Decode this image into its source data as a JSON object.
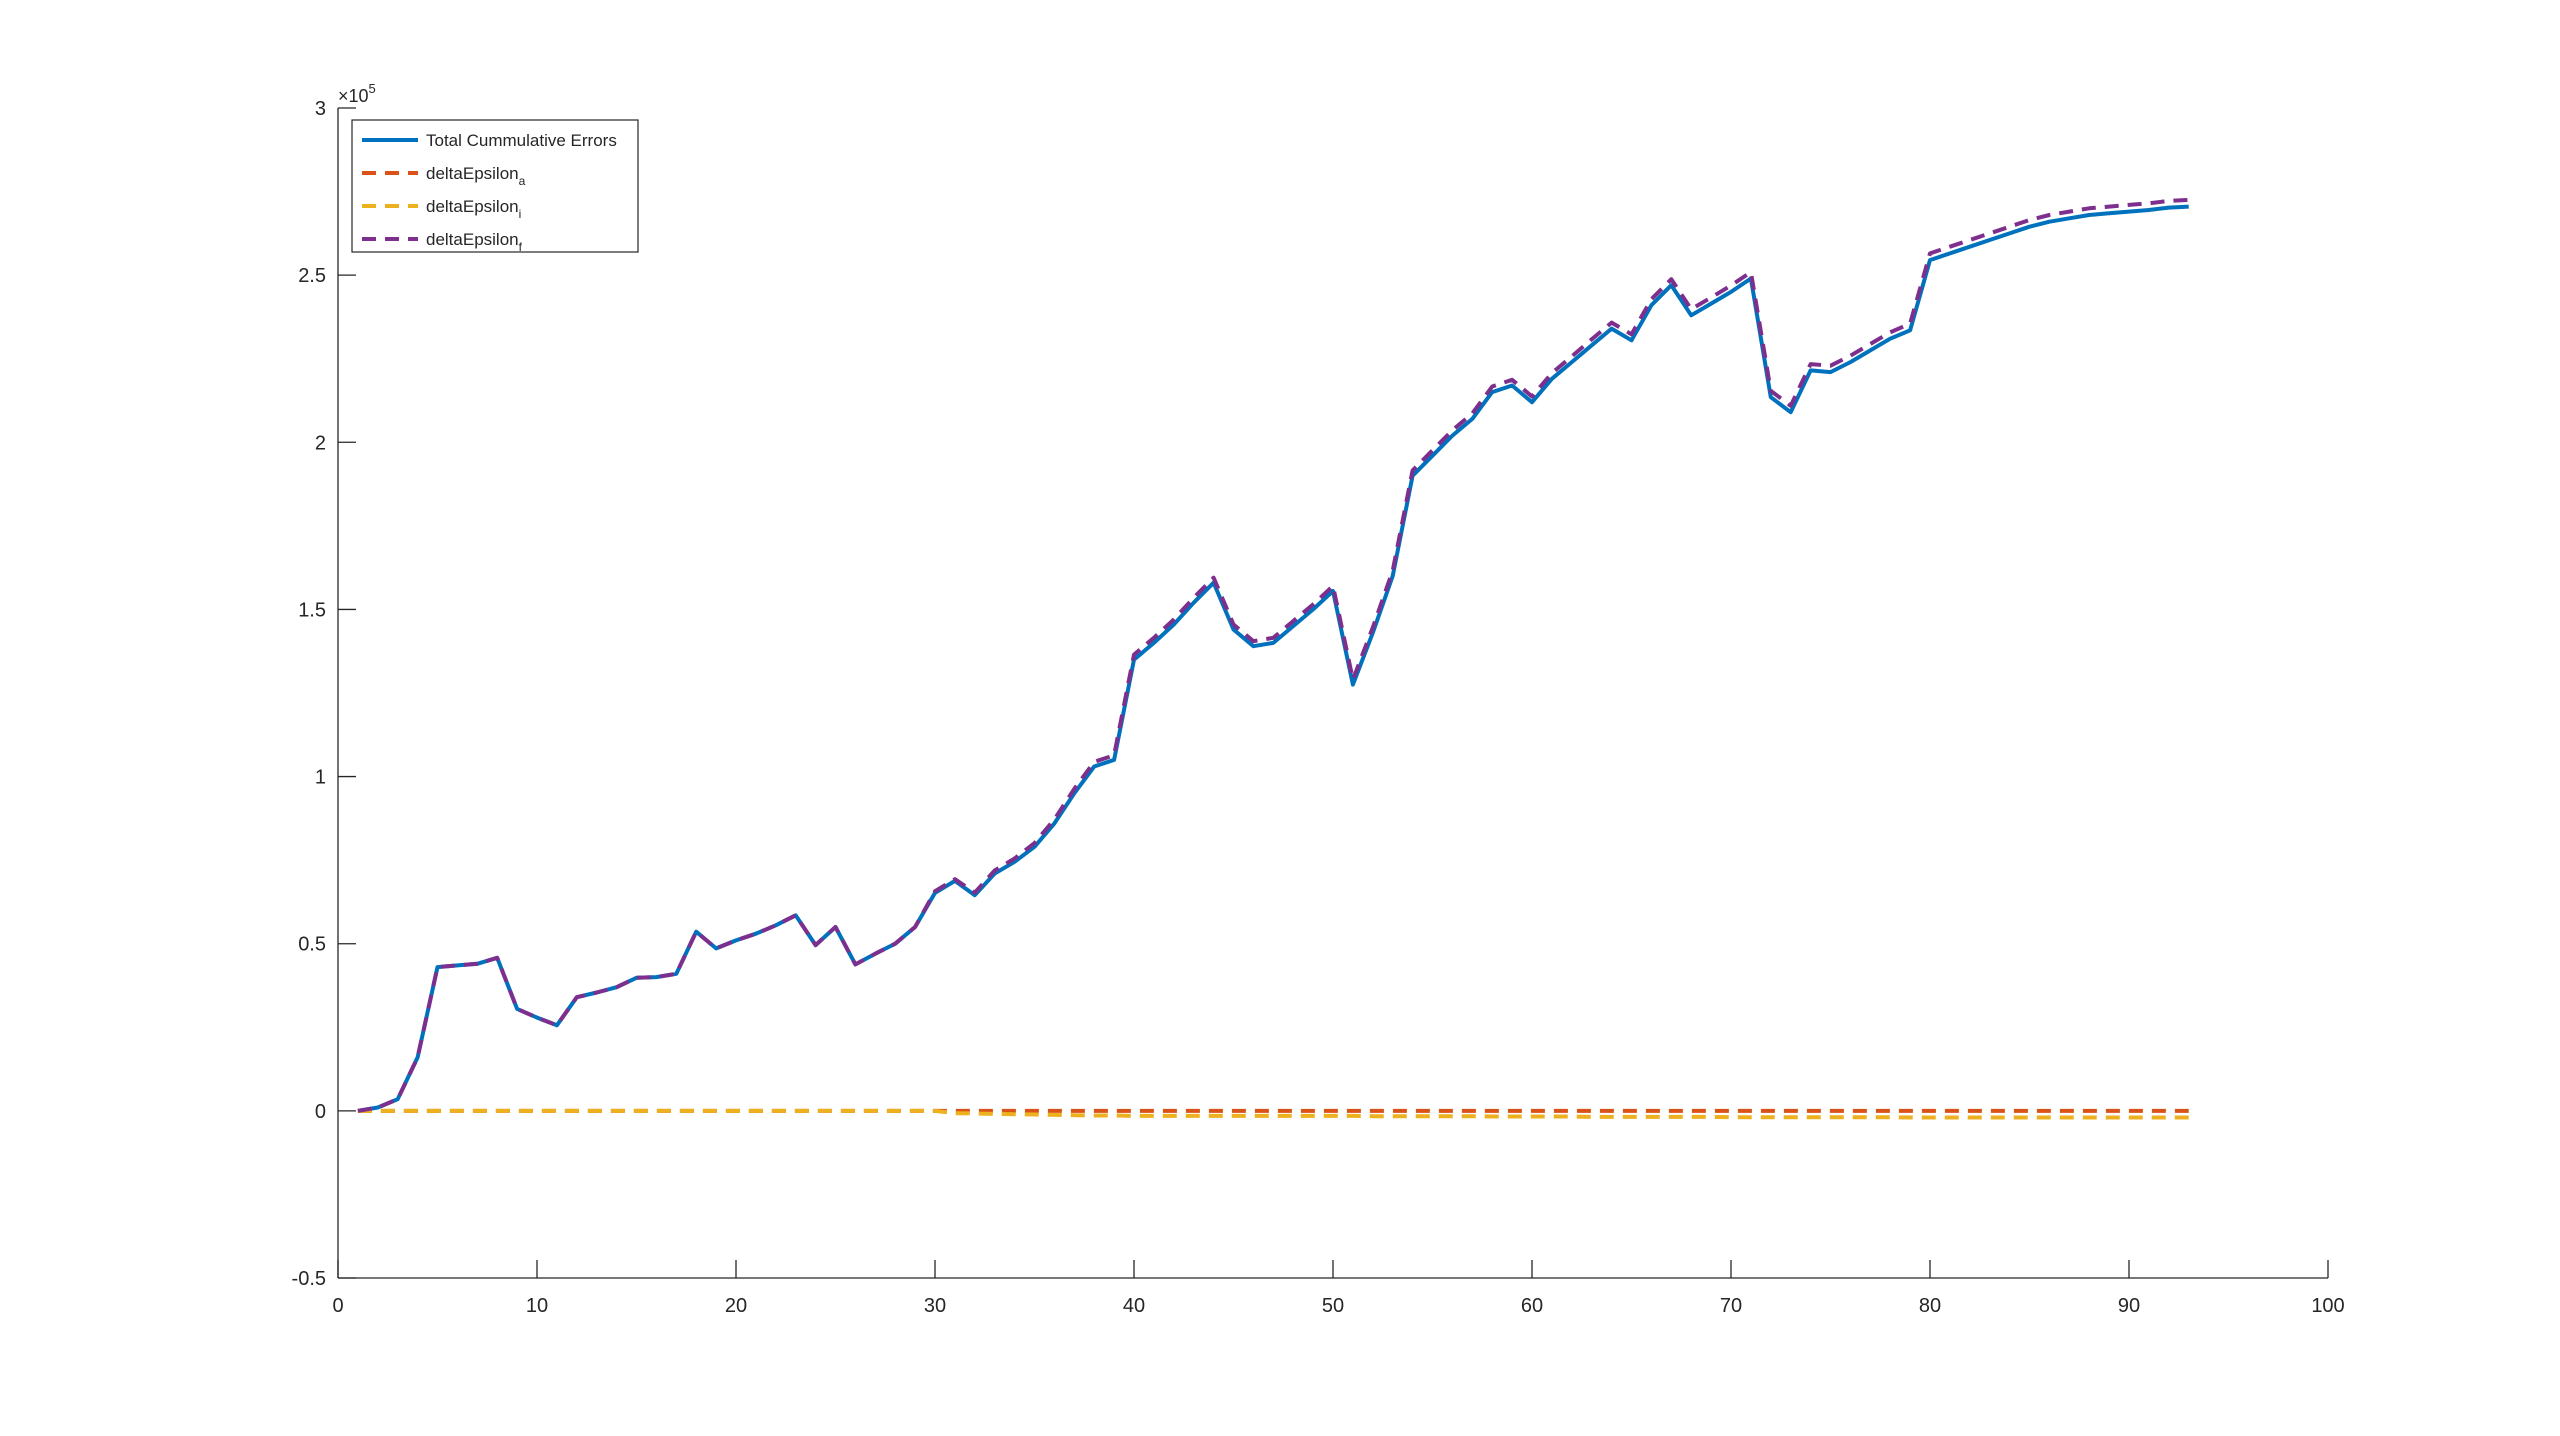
{
  "chart_data": {
    "type": "line",
    "title": "",
    "xlabel": "",
    "ylabel": "",
    "xlim": [
      0,
      100
    ],
    "ylim": [
      -50000,
      300000
    ],
    "y_exponent_label": "×10",
    "y_exponent_power": "5",
    "xticks": [
      0,
      10,
      20,
      30,
      40,
      50,
      60,
      70,
      80,
      90,
      100
    ],
    "xtick_labels": [
      "0",
      "10",
      "20",
      "30",
      "40",
      "50",
      "60",
      "70",
      "80",
      "90",
      "100"
    ],
    "yticks": [
      -50000,
      0,
      50000,
      100000,
      150000,
      200000,
      250000,
      300000
    ],
    "ytick_labels": [
      "-0.5",
      "0",
      "0.5",
      "1",
      "1.5",
      "2",
      "2.5",
      "3"
    ],
    "grid": false,
    "legend_position": "top-left",
    "x": [
      1,
      2,
      3,
      4,
      5,
      6,
      7,
      8,
      9,
      10,
      11,
      12,
      13,
      14,
      15,
      16,
      17,
      18,
      19,
      20,
      21,
      22,
      23,
      24,
      25,
      26,
      27,
      28,
      29,
      30,
      31,
      32,
      33,
      34,
      35,
      36,
      37,
      38,
      39,
      40,
      41,
      42,
      43,
      44,
      45,
      46,
      47,
      48,
      49,
      50,
      51,
      52,
      53,
      54,
      55,
      56,
      57,
      58,
      59,
      60,
      61,
      62,
      63,
      64,
      65,
      66,
      67,
      68,
      69,
      70,
      71,
      72,
      73,
      74,
      75,
      76,
      77,
      78,
      79,
      80,
      81,
      82,
      83,
      84,
      85,
      86,
      87,
      88,
      89,
      90,
      91,
      92,
      93
    ],
    "series": [
      {
        "name": "Total Cummulative Errors",
        "legend_main": "Total Cummulative Errors",
        "legend_sub": "",
        "color": "#0072BD",
        "dash": "solid",
        "values": [
          0,
          1000,
          3500,
          16000,
          43000,
          43500,
          44000,
          45800,
          30500,
          27900,
          25600,
          34000,
          35400,
          37000,
          39800,
          40000,
          41000,
          53600,
          48600,
          51000,
          53000,
          55500,
          58500,
          49600,
          55000,
          43800,
          47000,
          50000,
          55000,
          65200,
          68800,
          64500,
          71000,
          74500,
          79000,
          86000,
          95000,
          103000,
          105000,
          135000,
          140000,
          145500,
          152000,
          158000,
          144000,
          139000,
          140000,
          145000,
          150000,
          155500,
          127500,
          143000,
          160000,
          190000,
          196000,
          202000,
          207000,
          215000,
          217000,
          212000,
          219000,
          224000,
          229000,
          234000,
          230500,
          241000,
          247000,
          238000,
          241500,
          245000,
          249000,
          213500,
          209000,
          221500,
          221000,
          224000,
          227500,
          231000,
          233500,
          254500,
          256500,
          258500,
          260500,
          262500,
          264500,
          266000,
          267000,
          268000,
          268500,
          269000,
          269500,
          270200,
          270500
        ]
      },
      {
        "name": "deltaEpsilon_a",
        "legend_main": "deltaEpsilon",
        "legend_sub": "a",
        "color": "#D95319",
        "dash": "dashed",
        "values": [
          0,
          0,
          0,
          0,
          0,
          0,
          0,
          0,
          0,
          0,
          0,
          0,
          0,
          0,
          0,
          0,
          0,
          0,
          0,
          0,
          0,
          0,
          0,
          0,
          0,
          0,
          0,
          0,
          0,
          0,
          0,
          0,
          0,
          0,
          0,
          0,
          0,
          0,
          0,
          0,
          0,
          0,
          0,
          0,
          0,
          0,
          0,
          0,
          0,
          0,
          0,
          0,
          0,
          0,
          0,
          0,
          0,
          0,
          0,
          0,
          0,
          0,
          0,
          0,
          0,
          0,
          0,
          0,
          0,
          0,
          0,
          0,
          0,
          0,
          0,
          0,
          0,
          0,
          0,
          0,
          0,
          0,
          0,
          0,
          0,
          0,
          0,
          0,
          0,
          0,
          0,
          0,
          0
        ]
      },
      {
        "name": "deltaEpsilon_i",
        "legend_main": "deltaEpsilon",
        "legend_sub": "i",
        "color": "#EDB120",
        "dash": "dashed",
        "values": [
          0,
          0,
          0,
          0,
          0,
          0,
          0,
          0,
          0,
          0,
          0,
          0,
          0,
          0,
          0,
          0,
          0,
          0,
          0,
          0,
          0,
          0,
          0,
          0,
          0,
          0,
          0,
          0,
          0,
          0,
          -700,
          -800,
          -900,
          -1000,
          -1100,
          -1200,
          -1300,
          -1400,
          -1400,
          -1500,
          -1500,
          -1500,
          -1500,
          -1500,
          -1500,
          -1500,
          -1500,
          -1500,
          -1500,
          -1500,
          -1500,
          -1600,
          -1600,
          -1600,
          -1600,
          -1600,
          -1600,
          -1700,
          -1700,
          -1700,
          -1700,
          -1700,
          -1800,
          -1800,
          -1800,
          -1800,
          -1800,
          -1800,
          -1800,
          -1900,
          -1900,
          -1900,
          -1900,
          -1900,
          -1900,
          -1900,
          -1900,
          -1900,
          -2000,
          -2000,
          -2000,
          -2000,
          -2000,
          -2000,
          -2000,
          -2000,
          -2000,
          -2000,
          -2000,
          -2000,
          -2000,
          -2000,
          -2000
        ]
      },
      {
        "name": "deltaEpsilon_f",
        "legend_main": "deltaEpsilon",
        "legend_sub": "f",
        "color": "#7E2F8E",
        "dash": "dashed",
        "values": [
          0,
          1000,
          3500,
          16000,
          43000,
          43500,
          44000,
          45800,
          30500,
          27900,
          25600,
          34000,
          35400,
          37000,
          39800,
          40000,
          41000,
          53600,
          48600,
          51000,
          53000,
          55500,
          58500,
          49600,
          55000,
          43800,
          47000,
          50000,
          55000,
          65700,
          69300,
          65300,
          71900,
          75500,
          80100,
          87200,
          96300,
          104400,
          106400,
          136500,
          141500,
          147000,
          153500,
          159500,
          145500,
          140500,
          141500,
          146500,
          151500,
          157000,
          129000,
          144600,
          161600,
          191600,
          197600,
          203600,
          208600,
          216700,
          218700,
          213700,
          220700,
          225700,
          230800,
          235800,
          232300,
          242800,
          248800,
          239800,
          243300,
          246900,
          250900,
          215400,
          210900,
          223400,
          222900,
          225900,
          229400,
          232900,
          235500,
          256500,
          258500,
          260500,
          262500,
          264500,
          266500,
          268000,
          269000,
          270000,
          270500,
          271000,
          271500,
          272200,
          272500
        ]
      }
    ]
  }
}
